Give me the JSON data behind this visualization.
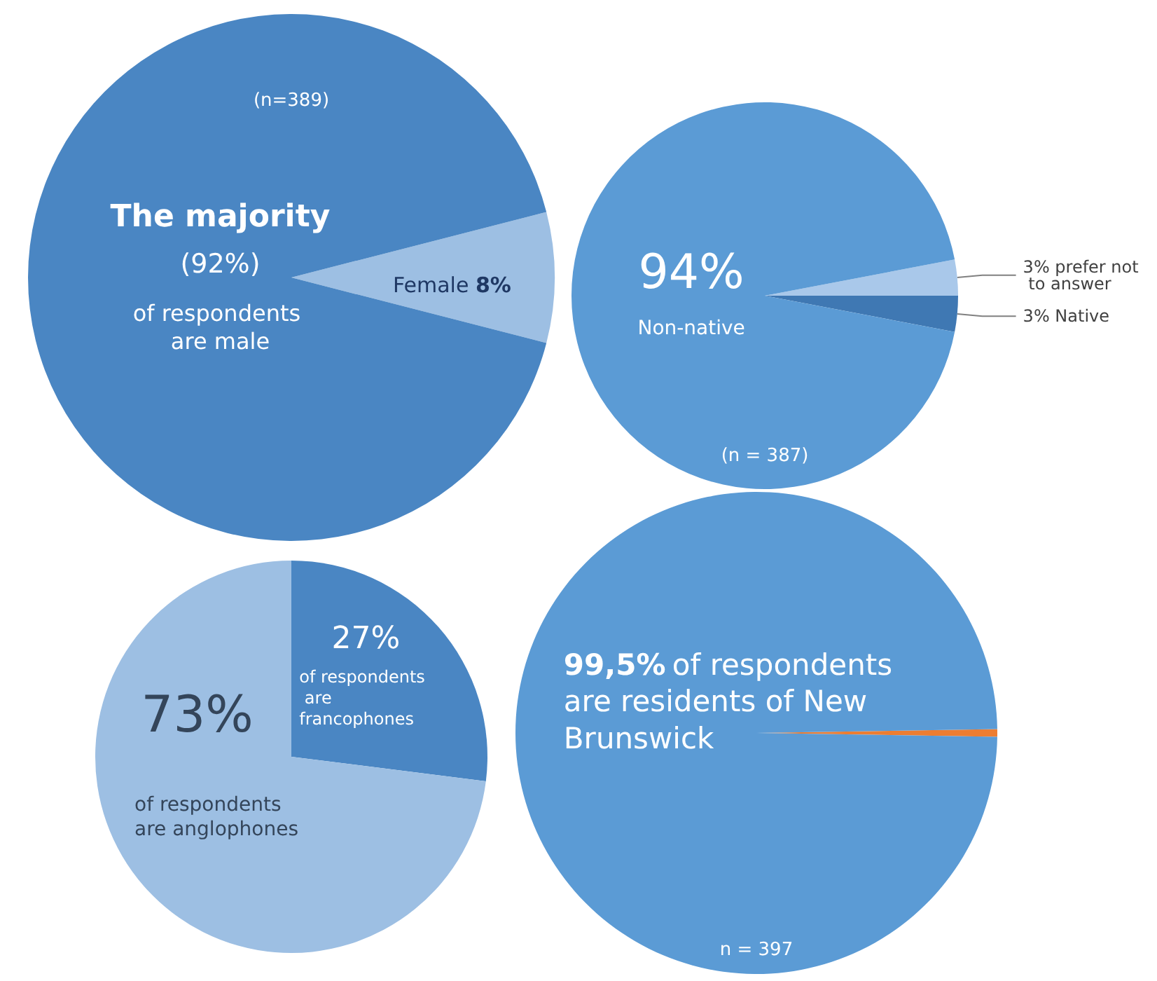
{
  "chart_data": [
    {
      "type": "pie",
      "categories": [
        null,
        null
      ],
      "values": [
        8,
        92
      ],
      "colors": [
        "#9dbfe3",
        "#4a86c3"
      ],
      "annotations": [
        "(n=389)",
        "The majority",
        "(92%)",
        "of respondents are male",
        "Female 8%"
      ]
    },
    {
      "type": "pie",
      "categories": [
        "3% prefer not to answer",
        "3% Native",
        null
      ],
      "values": [
        3,
        3,
        94
      ],
      "colors": [
        "#a9c8ea",
        "#3f78b3",
        "#5b9bd5"
      ],
      "annotations": [
        "94%",
        "Non-native",
        "(n = 387)"
      ]
    },
    {
      "type": "pie",
      "categories": [
        null,
        null
      ],
      "values": [
        27,
        73
      ],
      "colors": [
        "#4a86c3",
        "#9dbfe3"
      ],
      "annotations": [
        "27%",
        "of respondents are francophones",
        "73%",
        "of respondents are anglophones"
      ]
    },
    {
      "type": "pie",
      "categories": [
        null,
        null
      ],
      "values": [
        0.5,
        99.5
      ],
      "colors": [
        "#ed7d31",
        "#5b9bd5"
      ],
      "annotations": [
        "99,5% of respondents are residents of New Brunswick",
        "n = 397"
      ]
    }
  ]
}
